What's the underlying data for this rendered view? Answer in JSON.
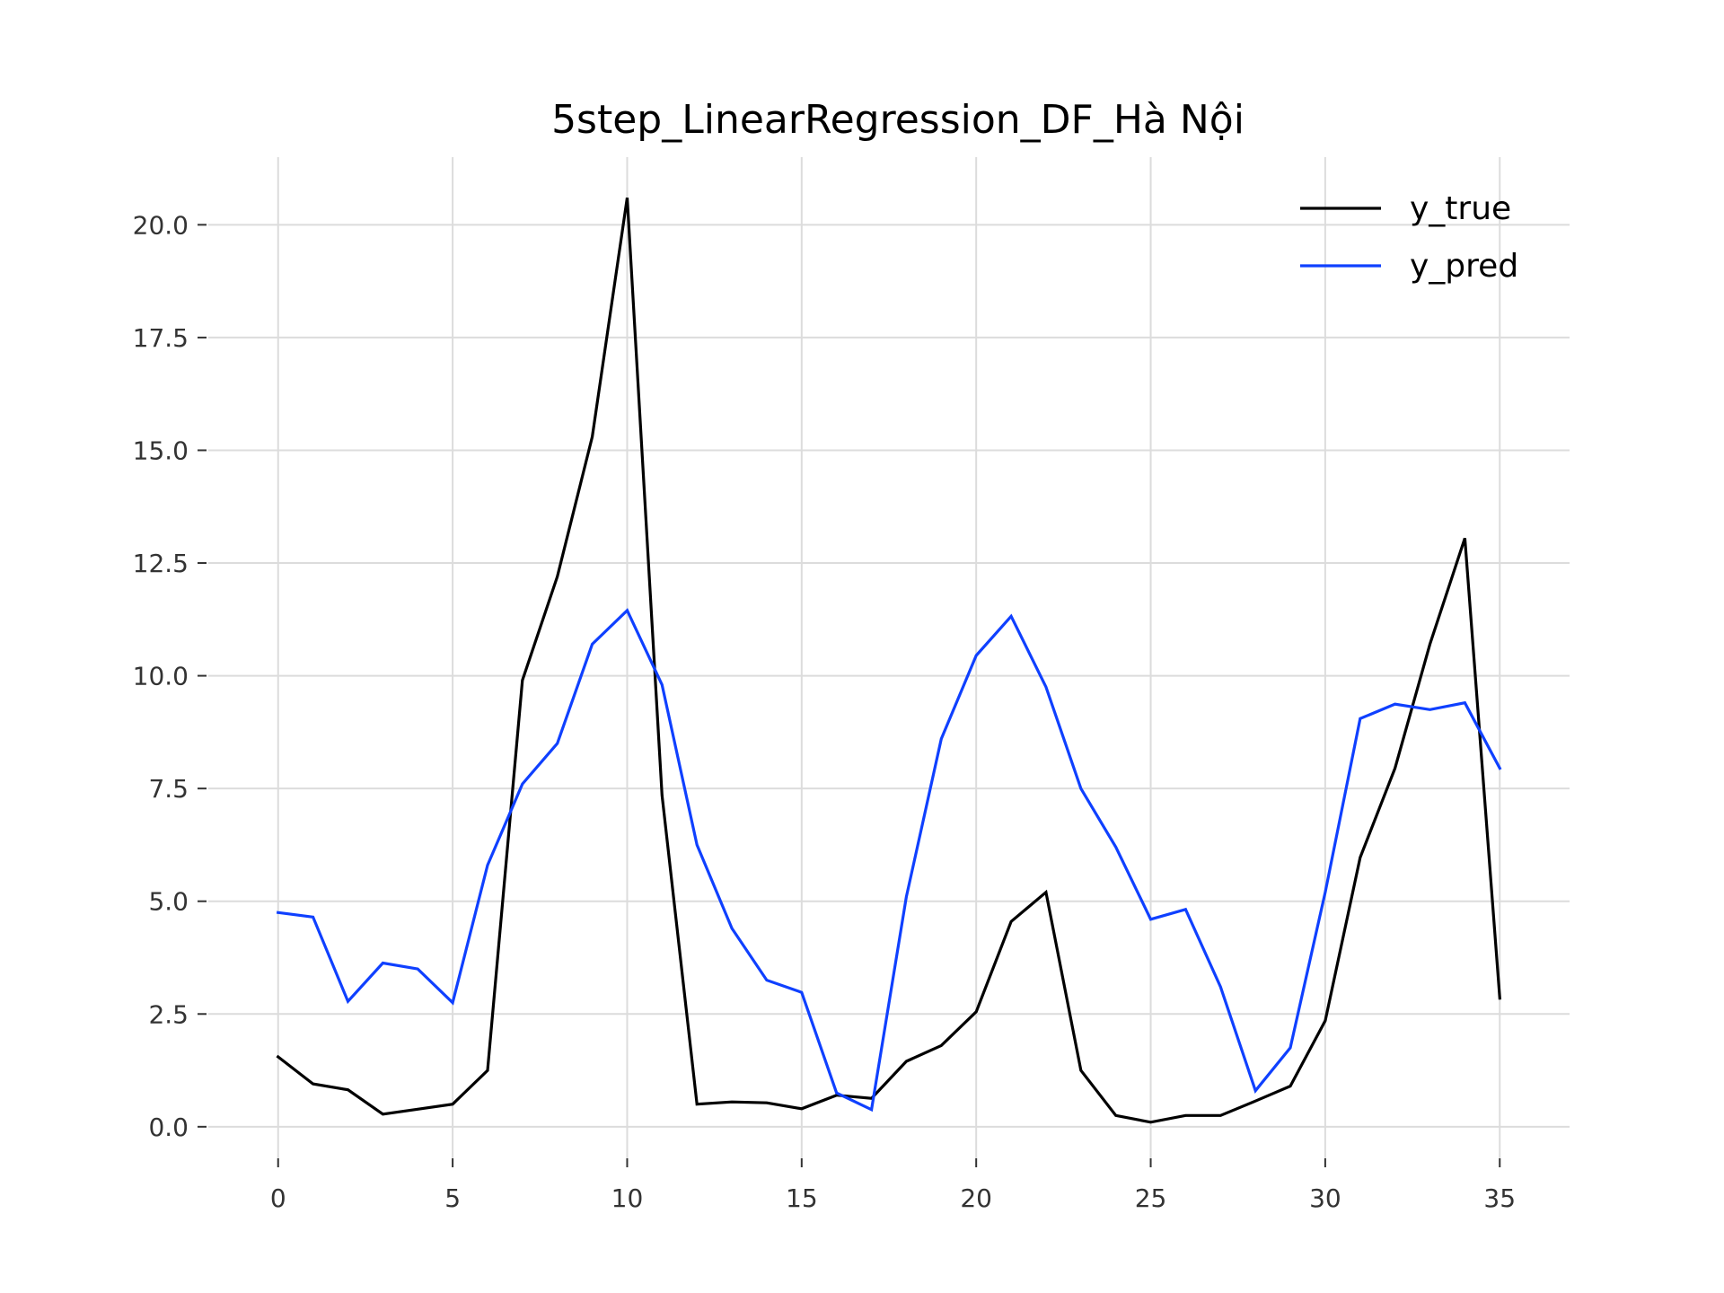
{
  "chart_data": {
    "type": "line",
    "title": "5step_LinearRegression_DF_Hà Nội",
    "xlabel": "",
    "ylabel": "",
    "xlim": [
      -2,
      37
    ],
    "ylim": [
      -0.7,
      21.5
    ],
    "grid": true,
    "legend_position": "top-right",
    "x_ticks": [
      0,
      5,
      10,
      15,
      20,
      25,
      30,
      35
    ],
    "x_tick_labels": [
      "0",
      "5",
      "10",
      "15",
      "20",
      "25",
      "30",
      "35"
    ],
    "y_ticks": [
      0,
      2.5,
      5,
      7.5,
      10,
      12.5,
      15,
      17.5,
      20
    ],
    "y_tick_labels": [
      "0.0",
      "2.5",
      "5.0",
      "7.5",
      "10.0",
      "12.5",
      "15.0",
      "17.5",
      "20.0"
    ],
    "x": [
      0,
      1,
      2,
      3,
      4,
      5,
      6,
      7,
      8,
      9,
      10,
      11,
      12,
      13,
      14,
      15,
      16,
      17,
      18,
      19,
      20,
      21,
      22,
      23,
      24,
      25,
      26,
      27,
      28,
      29,
      30,
      31,
      32,
      33,
      34,
      35
    ],
    "series": [
      {
        "name": "y_true",
        "color": "#000000",
        "values": [
          1.55,
          0.95,
          0.82,
          0.28,
          0.39,
          0.5,
          1.25,
          9.9,
          12.2,
          15.3,
          20.6,
          7.35,
          0.5,
          0.55,
          0.53,
          0.4,
          0.7,
          0.63,
          1.45,
          1.8,
          2.55,
          4.55,
          5.2,
          1.25,
          0.25,
          0.1,
          0.25,
          0.25,
          0.57,
          0.9,
          2.35,
          5.97,
          7.95,
          10.7,
          13.05,
          2.85
        ]
      },
      {
        "name": "y_pred",
        "color": "#0f40ff",
        "values": [
          4.75,
          4.65,
          2.78,
          3.63,
          3.5,
          2.75,
          5.8,
          7.6,
          8.5,
          10.7,
          11.45,
          9.8,
          6.25,
          4.4,
          3.25,
          2.98,
          0.75,
          0.38,
          5.1,
          8.6,
          10.45,
          11.32,
          9.75,
          7.5,
          6.2,
          4.6,
          4.82,
          3.1,
          0.8,
          1.75,
          5.2,
          9.05,
          9.37,
          9.25,
          9.4,
          7.95
        ]
      }
    ]
  }
}
